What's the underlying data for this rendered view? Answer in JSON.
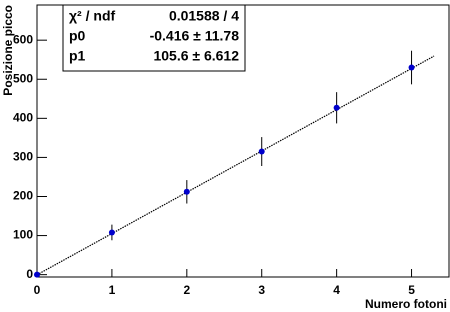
{
  "chart_data": {
    "type": "scatter",
    "x_label": "Numero fotoni",
    "y_label": "Posizione picco",
    "x": [
      0,
      1,
      2,
      3,
      4,
      5
    ],
    "values": [
      0,
      108,
      212,
      315,
      427,
      530
    ],
    "errors": [
      5,
      20,
      30,
      37,
      40,
      43
    ],
    "color": "#0000cc",
    "fit_line": {
      "x": [
        0,
        5.3
      ],
      "values": [
        -0.416,
        559.3
      ],
      "color": "#000000"
    },
    "xlim": [
      0,
      5.5
    ],
    "ylim": [
      -6,
      690
    ],
    "xticks": [
      0,
      1,
      2,
      3,
      4,
      5
    ],
    "yticks": [
      0,
      100,
      200,
      300,
      400,
      500,
      600
    ],
    "stats": [
      [
        "χ² / ndf",
        "0.01588 / 4"
      ],
      [
        "p0",
        "-0.416 ± 11.78"
      ],
      [
        "p1",
        "105.6 ± 6.612"
      ]
    ]
  }
}
